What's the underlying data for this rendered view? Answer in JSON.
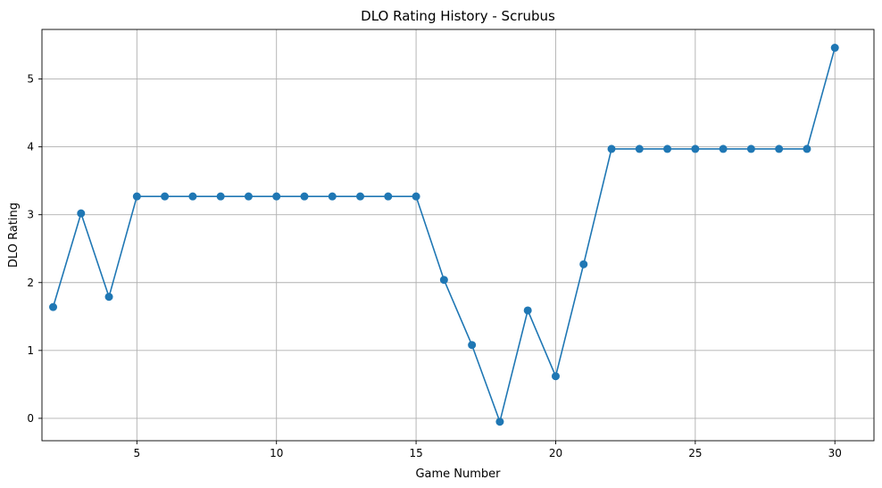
{
  "chart_data": {
    "type": "line",
    "title": "DLO Rating History - Scrubus",
    "xlabel": "Game Number",
    "ylabel": "DLO Rating",
    "xlim": [
      1.6,
      31.4
    ],
    "ylim": [
      -0.33,
      5.73
    ],
    "xticks": [
      5,
      10,
      15,
      20,
      25,
      30
    ],
    "yticks": [
      0,
      1,
      2,
      3,
      4,
      5
    ],
    "grid": true,
    "marker": "circle",
    "color": "#1f77b4",
    "series": [
      {
        "x": [
          2,
          3,
          4,
          5,
          6,
          7,
          8,
          9,
          10,
          11,
          12,
          13,
          14,
          15,
          16,
          17,
          18,
          19,
          20,
          21,
          22,
          23,
          24,
          25,
          26,
          27,
          28,
          29,
          30
        ],
        "values": [
          1.64,
          3.02,
          1.79,
          3.27,
          3.27,
          3.27,
          3.27,
          3.27,
          3.27,
          3.27,
          3.27,
          3.27,
          3.27,
          3.27,
          2.04,
          1.08,
          -0.05,
          1.59,
          0.62,
          2.27,
          3.97,
          3.97,
          3.97,
          3.97,
          3.97,
          3.97,
          3.97,
          3.97,
          5.46
        ]
      }
    ]
  }
}
